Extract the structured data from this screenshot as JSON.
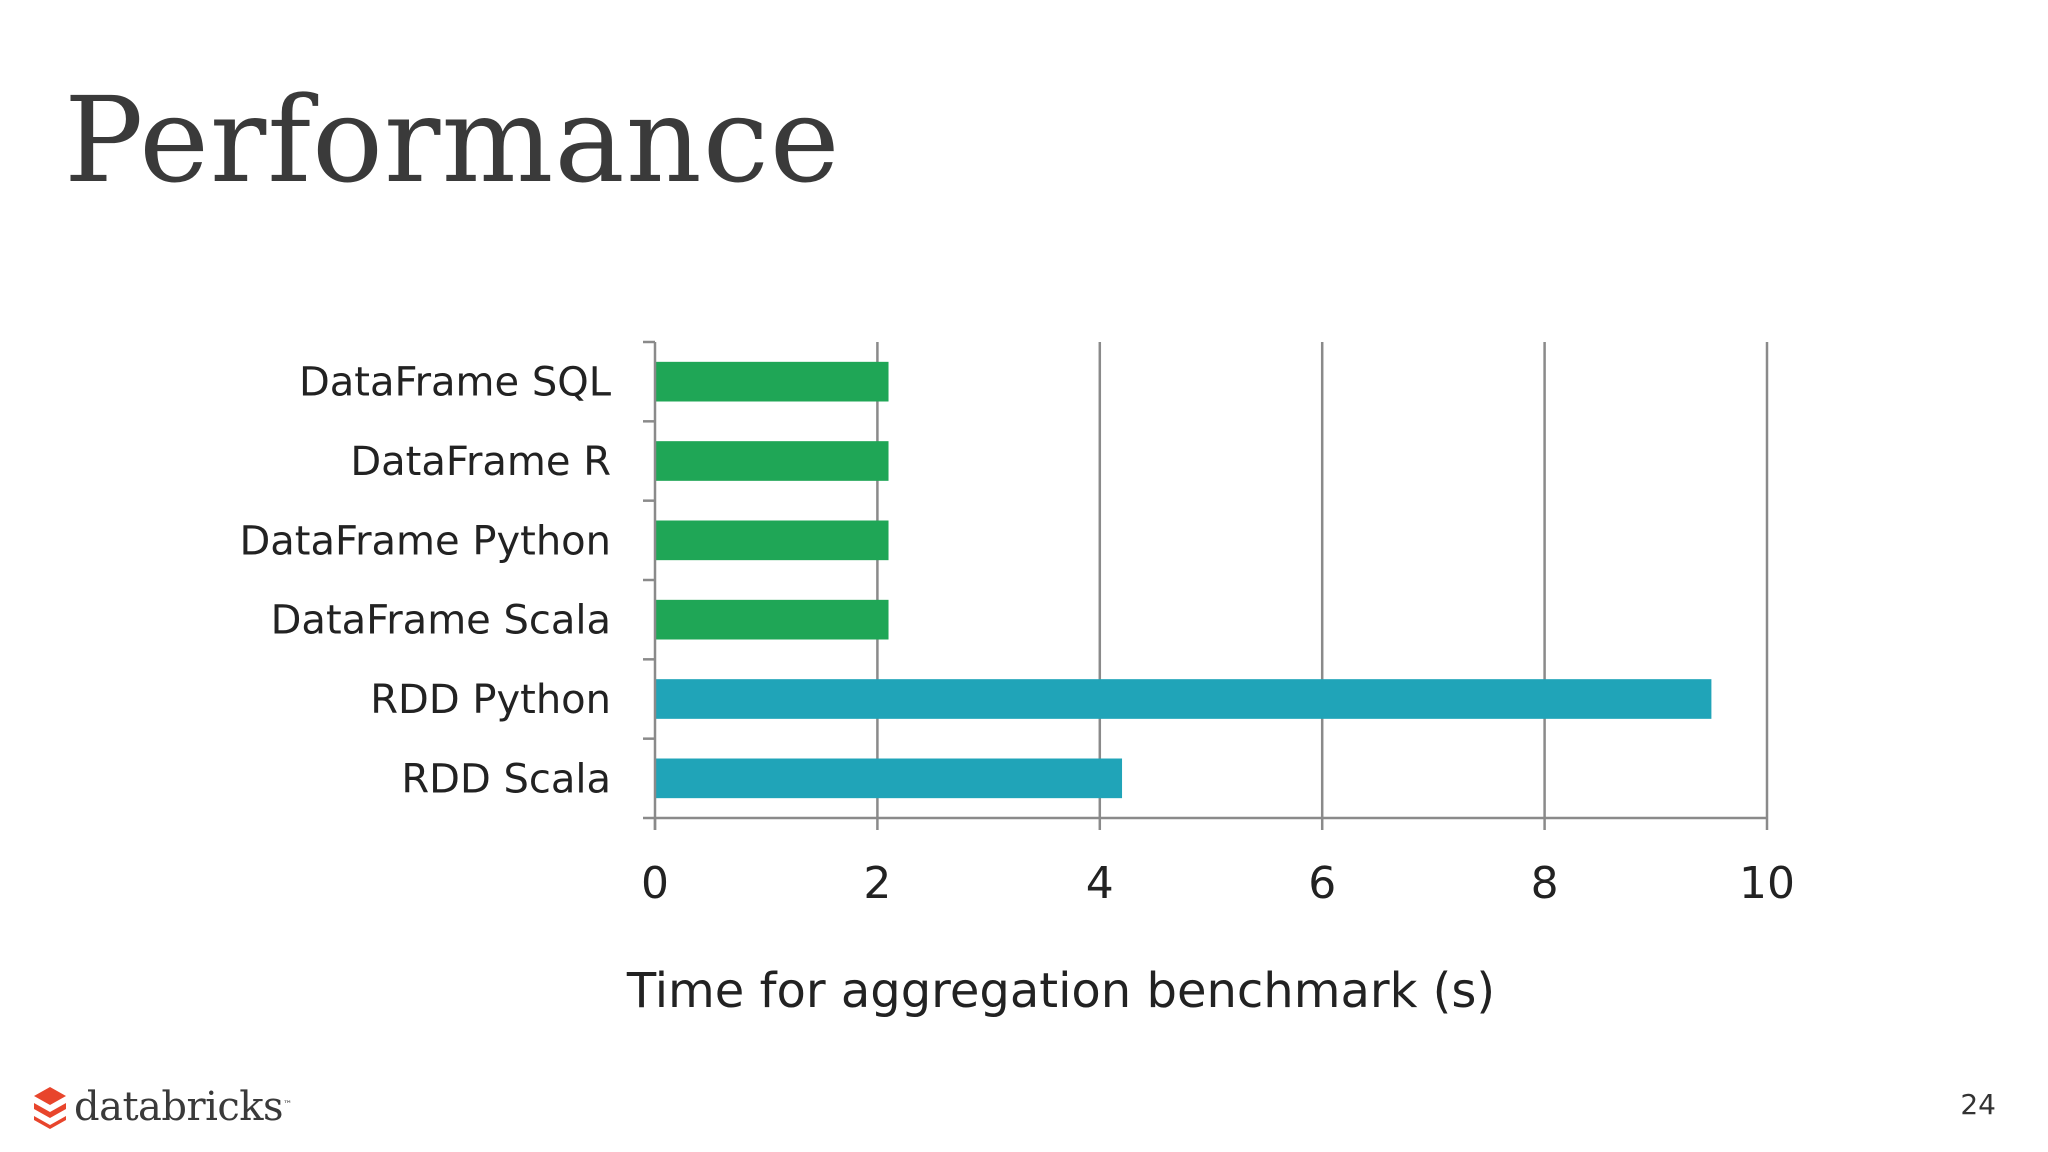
{
  "slide": {
    "title": "Performance",
    "page_number": "24",
    "logo_text": "databricks",
    "logo_tm": "™"
  },
  "colors": {
    "dataframe": "#1fa656",
    "rdd": "#20a4b8",
    "grid": "#8a8a8a",
    "logo": "#e8452c"
  },
  "chart_data": {
    "type": "bar",
    "orientation": "horizontal",
    "categories": [
      "DataFrame SQL",
      "DataFrame R",
      "DataFrame Python",
      "DataFrame Scala",
      "RDD Python",
      "RDD Scala"
    ],
    "values": [
      2.1,
      2.1,
      2.1,
      2.1,
      9.5,
      4.2
    ],
    "bar_colors": [
      "#1fa656",
      "#1fa656",
      "#1fa656",
      "#1fa656",
      "#20a4b8",
      "#20a4b8"
    ],
    "xlabel": "Time for aggregation benchmark (s)",
    "xlim": [
      0,
      10
    ],
    "xticks": [
      0,
      2,
      4,
      6,
      8,
      10
    ],
    "grid": true
  }
}
